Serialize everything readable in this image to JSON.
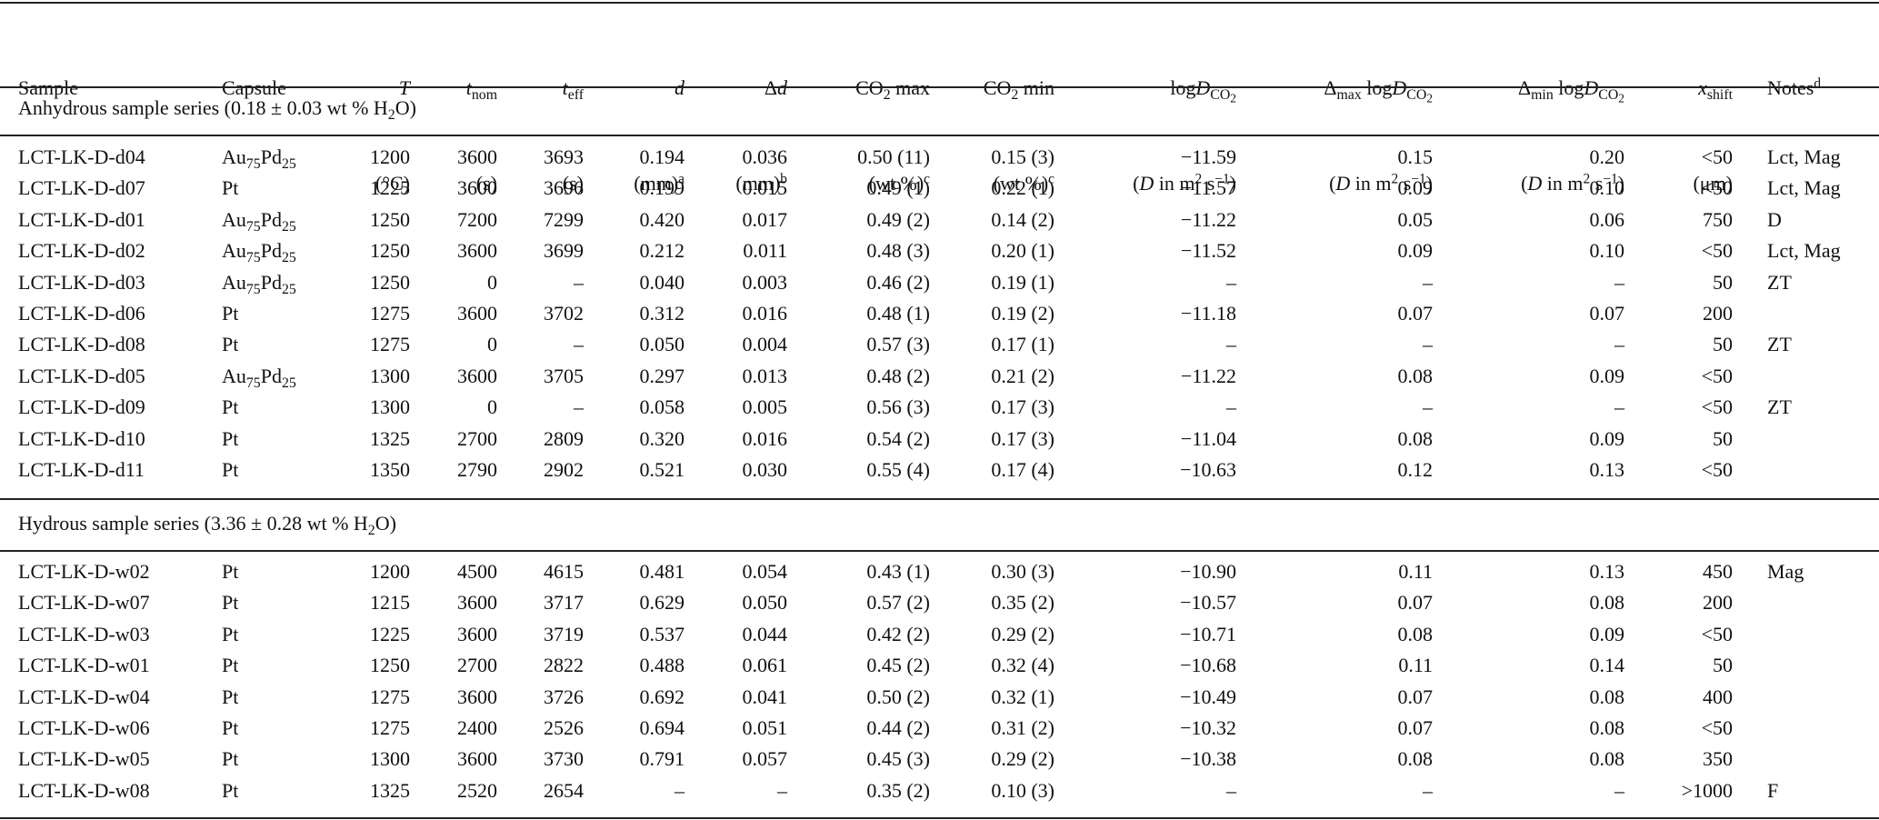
{
  "header": {
    "columns": [
      {
        "label": "Sample"
      },
      {
        "label": "Capsule"
      },
      {
        "symbol": "T",
        "unit": "(°C)"
      },
      {
        "symbol": "t",
        "subscript": "nom",
        "unit": "(s)"
      },
      {
        "symbol": "t",
        "subscript": "eff",
        "unit": "(s)"
      },
      {
        "symbol": "d",
        "unit": "(mm)",
        "note": "a"
      },
      {
        "prefix": "Δ",
        "symbol": "d",
        "unit": "(mm)",
        "note": "b"
      },
      {
        "label": "CO",
        "subscript": "2",
        "suffix": "max",
        "unit": "(wt %)",
        "note": "c"
      },
      {
        "label": "CO",
        "subscript": "2",
        "suffix": "min",
        "unit": "(wt %)",
        "note": "c"
      },
      {
        "label": "log",
        "symbol": "D",
        "subscript": "CO",
        "subsubscript": "2",
        "unit": [
          "(",
          "D",
          " in m",
          "2",
          " s",
          "−1",
          ")"
        ]
      },
      {
        "prefix": "Δ",
        "prefix_subscript": "max",
        "label": "log",
        "symbol": "D",
        "subscript": "CO",
        "subsubscript": "2",
        "unit": [
          "(",
          "D",
          " in m",
          "2",
          " s",
          "−1",
          ")"
        ]
      },
      {
        "prefix": "Δ",
        "prefix_subscript": "min",
        "label": "log",
        "symbol": "D",
        "subscript": "CO",
        "subsubscript": "2",
        "unit": [
          "(",
          "D",
          " in m",
          "2",
          " s",
          "−1",
          ")"
        ]
      },
      {
        "symbol": "x",
        "subscript": "shift",
        "unit": "(μm)"
      },
      {
        "label": "Notes",
        "note": "d"
      }
    ]
  },
  "sections": [
    {
      "title": [
        "Anhydrous sample series (0.18 ± 0.03 wt % H",
        "2",
        "O)"
      ],
      "rows": [
        [
          "LCT-LK-D-d04",
          "Au75Pd25",
          "1200",
          "3600",
          "3693",
          "0.194",
          "0.036",
          "0.50 (11)",
          "0.15 (3)",
          "−11.59",
          "0.15",
          "0.20",
          "<50",
          "Lct, Mag"
        ],
        [
          "LCT-LK-D-d07",
          "Pt",
          "1225",
          "3600",
          "3696",
          "0.199",
          "0.015",
          "0.49 (1)",
          "0.22 (1)",
          "−11.57",
          "0.09",
          "0.10",
          "<50",
          "Lct, Mag"
        ],
        [
          "LCT-LK-D-d01",
          "Au75Pd25",
          "1250",
          "7200",
          "7299",
          "0.420",
          "0.017",
          "0.49 (2)",
          "0.14 (2)",
          "−11.22",
          "0.05",
          "0.06",
          "750",
          "D"
        ],
        [
          "LCT-LK-D-d02",
          "Au75Pd25",
          "1250",
          "3600",
          "3699",
          "0.212",
          "0.011",
          "0.48 (3)",
          "0.20 (1)",
          "−11.52",
          "0.09",
          "0.10",
          "<50",
          "Lct, Mag"
        ],
        [
          "LCT-LK-D-d03",
          "Au75Pd25",
          "1250",
          "0",
          "–",
          "0.040",
          "0.003",
          "0.46 (2)",
          "0.19 (1)",
          "–",
          "–",
          "–",
          "50",
          "ZT"
        ],
        [
          "LCT-LK-D-d06",
          "Pt",
          "1275",
          "3600",
          "3702",
          "0.312",
          "0.016",
          "0.48 (1)",
          "0.19 (2)",
          "−11.18",
          "0.07",
          "0.07",
          "200",
          null
        ],
        [
          "LCT-LK-D-d08",
          "Pt",
          "1275",
          "0",
          "–",
          "0.050",
          "0.004",
          "0.57 (3)",
          "0.17 (1)",
          "–",
          "–",
          "–",
          "50",
          "ZT"
        ],
        [
          "LCT-LK-D-d05",
          "Au75Pd25",
          "1300",
          "3600",
          "3705",
          "0.297",
          "0.013",
          "0.48 (2)",
          "0.21 (2)",
          "−11.22",
          "0.08",
          "0.09",
          "<50",
          null
        ],
        [
          "LCT-LK-D-d09",
          "Pt",
          "1300",
          "0",
          "–",
          "0.058",
          "0.005",
          "0.56 (3)",
          "0.17 (3)",
          "–",
          "–",
          "–",
          "<50",
          "ZT"
        ],
        [
          "LCT-LK-D-d10",
          "Pt",
          "1325",
          "2700",
          "2809",
          "0.320",
          "0.016",
          "0.54 (2)",
          "0.17 (3)",
          "−11.04",
          "0.08",
          "0.09",
          "50",
          null
        ],
        [
          "LCT-LK-D-d11",
          "Pt",
          "1350",
          "2790",
          "2902",
          "0.521",
          "0.030",
          "0.55 (4)",
          "0.17 (4)",
          "−10.63",
          "0.12",
          "0.13",
          "<50",
          null
        ]
      ]
    },
    {
      "title": [
        "Hydrous sample series (3.36 ± 0.28 wt % H",
        "2",
        "O)"
      ],
      "rows": [
        [
          "LCT-LK-D-w02",
          "Pt",
          "1200",
          "4500",
          "4615",
          "0.481",
          "0.054",
          "0.43 (1)",
          "0.30 (3)",
          "−10.90",
          "0.11",
          "0.13",
          "450",
          "Mag"
        ],
        [
          "LCT-LK-D-w07",
          "Pt",
          "1215",
          "3600",
          "3717",
          "0.629",
          "0.050",
          "0.57 (2)",
          "0.35 (2)",
          "−10.57",
          "0.07",
          "0.08",
          "200",
          null
        ],
        [
          "LCT-LK-D-w03",
          "Pt",
          "1225",
          "3600",
          "3719",
          "0.537",
          "0.044",
          "0.42 (2)",
          "0.29 (2)",
          "−10.71",
          "0.08",
          "0.09",
          "<50",
          null
        ],
        [
          "LCT-LK-D-w01",
          "Pt",
          "1250",
          "2700",
          "2822",
          "0.488",
          "0.061",
          "0.45 (2)",
          "0.32 (4)",
          "−10.68",
          "0.11",
          "0.14",
          "50",
          null
        ],
        [
          "LCT-LK-D-w04",
          "Pt",
          "1275",
          "3600",
          "3726",
          "0.692",
          "0.041",
          "0.50 (2)",
          "0.32 (1)",
          "−10.49",
          "0.07",
          "0.08",
          "400",
          null
        ],
        [
          "LCT-LK-D-w06",
          "Pt",
          "1275",
          "2400",
          "2526",
          "0.694",
          "0.051",
          "0.44 (2)",
          "0.31 (2)",
          "−10.32",
          "0.07",
          "0.08",
          "<50",
          null
        ],
        [
          "LCT-LK-D-w05",
          "Pt",
          "1300",
          "3600",
          "3730",
          "0.791",
          "0.057",
          "0.45 (3)",
          "0.29 (2)",
          "−10.38",
          "0.08",
          "0.08",
          "350",
          null
        ],
        [
          "LCT-LK-D-w08",
          "Pt",
          "1325",
          "2520",
          "2654",
          "–",
          "–",
          "0.35 (2)",
          "0.10 (3)",
          "–",
          "–",
          "–",
          ">1000",
          "F"
        ]
      ]
    }
  ]
}
